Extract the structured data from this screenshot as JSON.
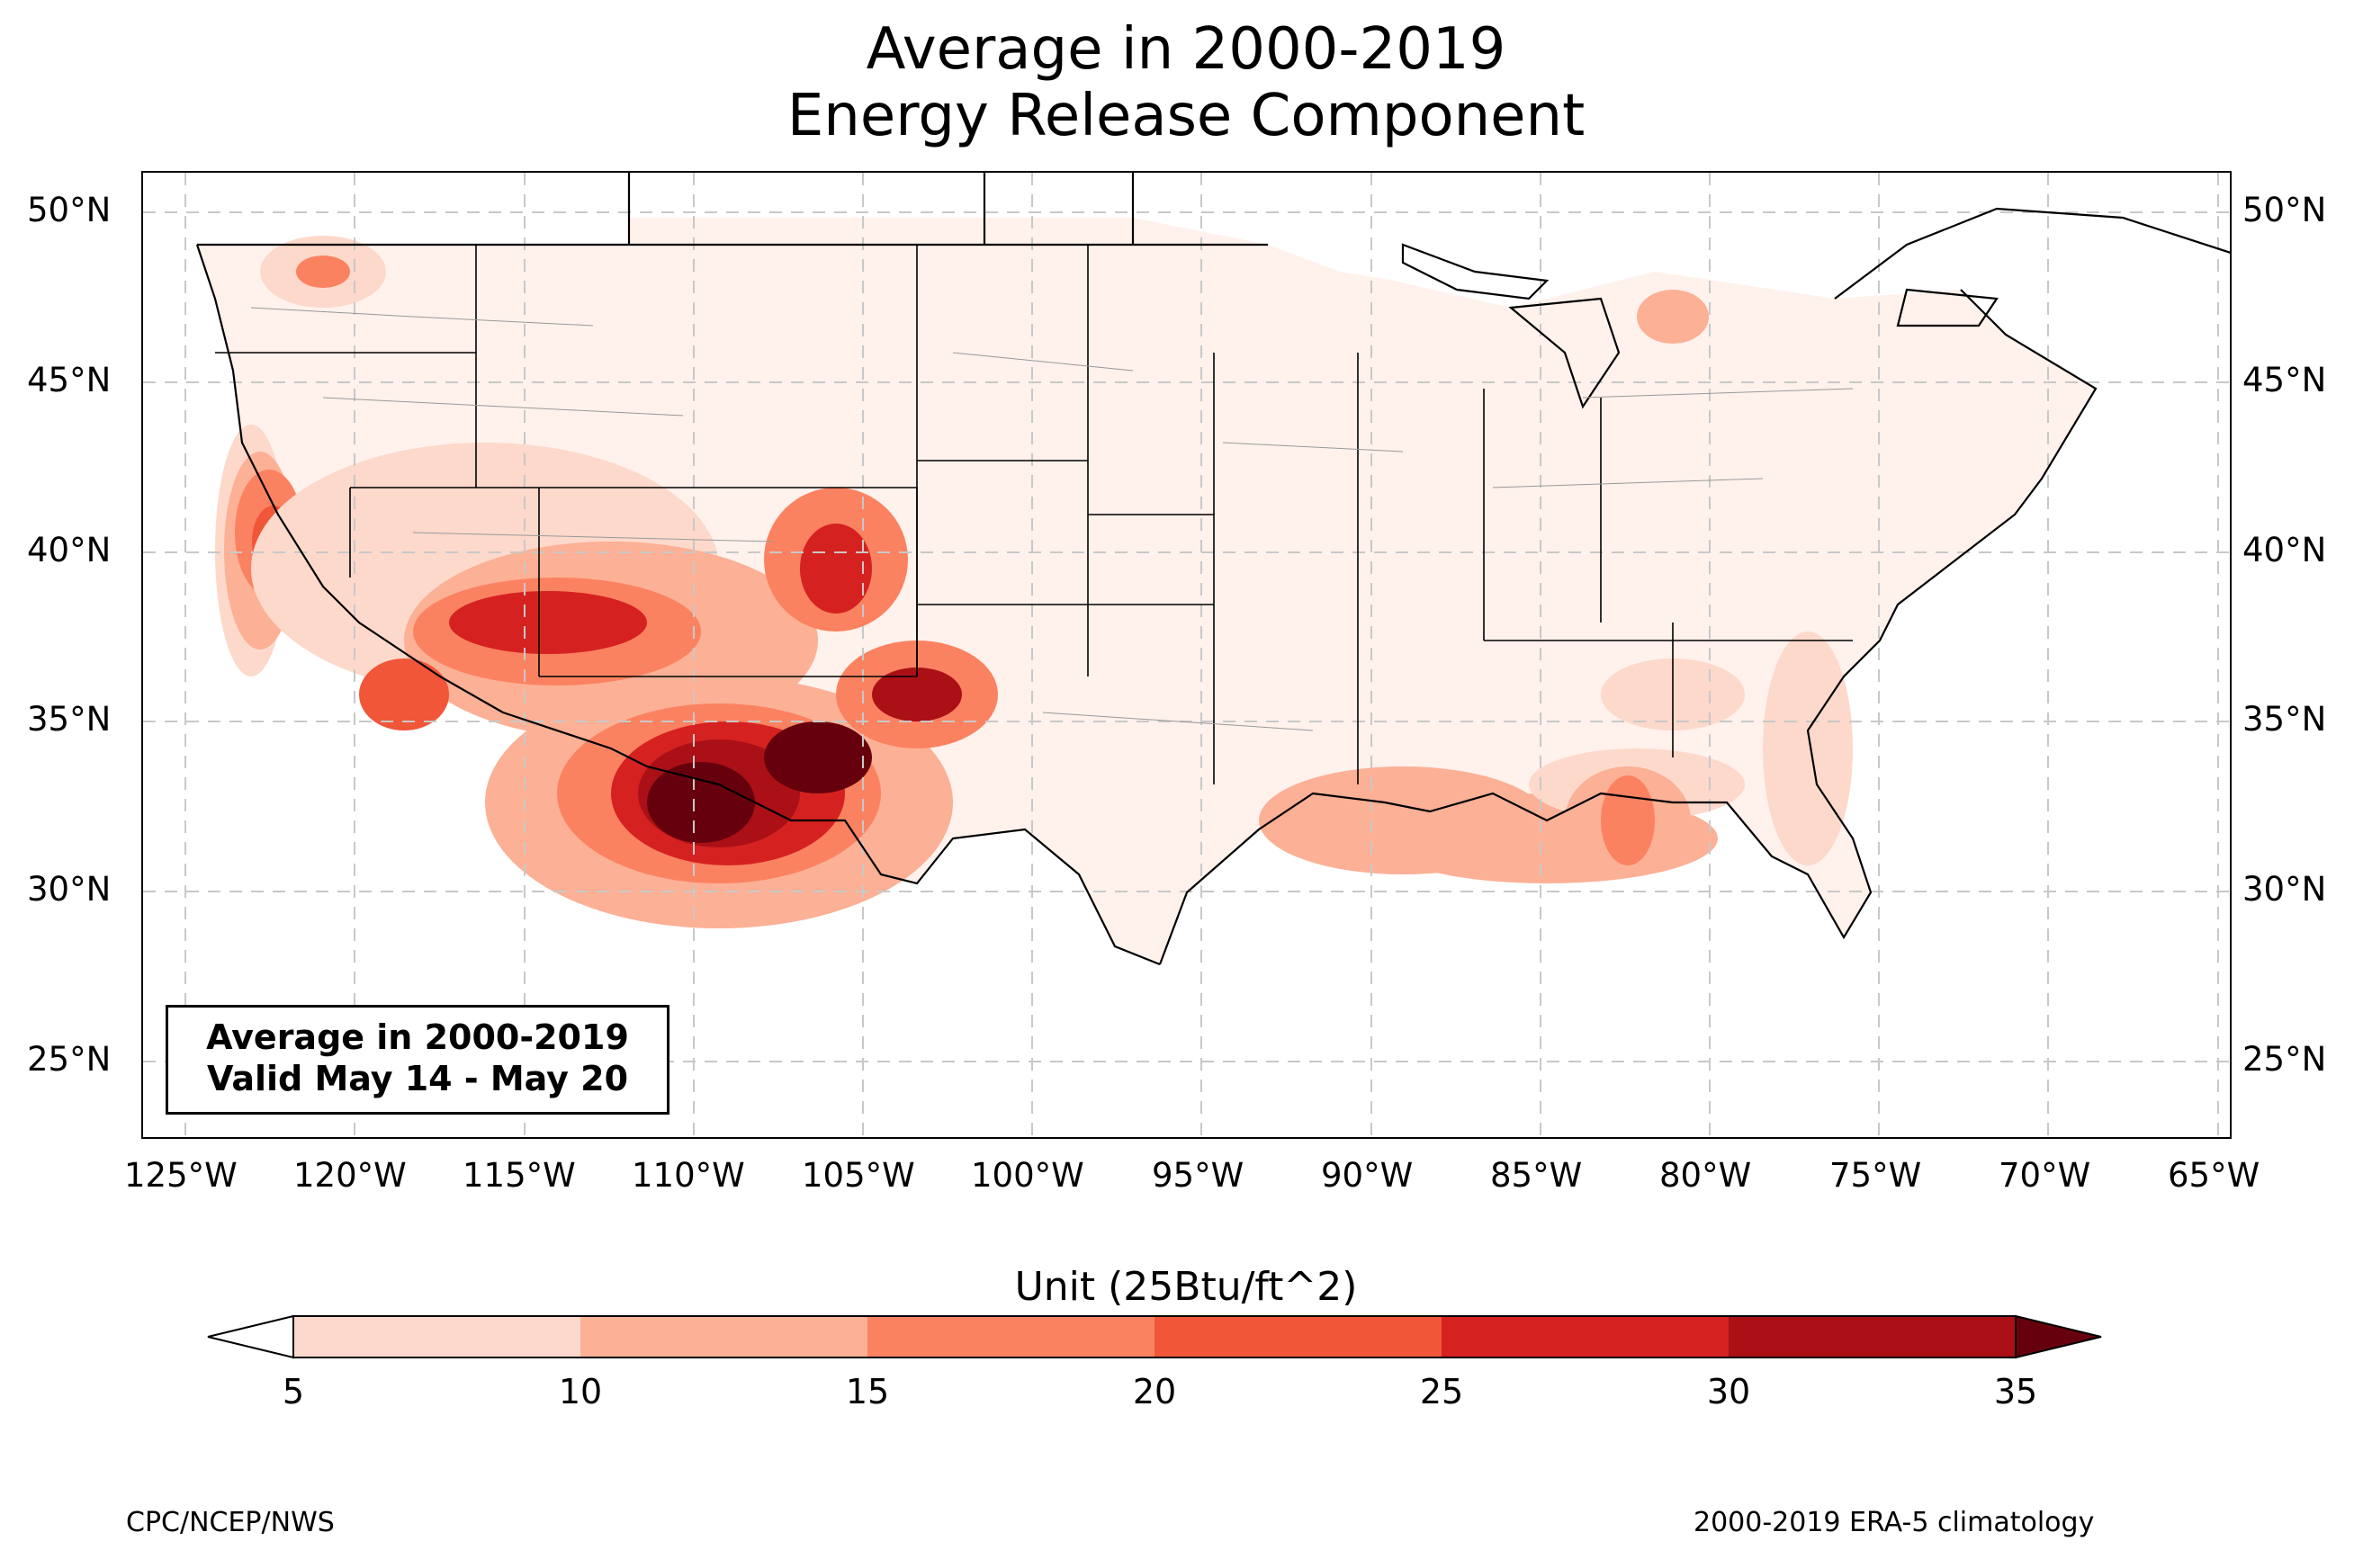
{
  "title": {
    "line1": "Average in 2000-2019",
    "line2": "Energy Release Component"
  },
  "map": {
    "projection": "PlateCarree",
    "lon_range": [
      -126.5,
      -64.8
    ],
    "lat_range": [
      22.8,
      51.2
    ],
    "lon_ticks": [
      "125°W",
      "120°W",
      "115°W",
      "110°W",
      "105°W",
      "100°W",
      "95°W",
      "90°W",
      "85°W",
      "80°W",
      "75°W",
      "70°W",
      "65°W"
    ],
    "lat_ticks": [
      "50°N",
      "45°N",
      "40°N",
      "35°N",
      "30°N",
      "25°N"
    ],
    "gridlines": "dashed grey",
    "field": "Energy Release Component average, week of May 14 - May 20"
  },
  "info_box": {
    "line1": "Average in 2000-2019",
    "line2": "Valid May 14 - May 20"
  },
  "colorbar": {
    "label": "Unit (25Btu/ft^2)",
    "levels": [
      5,
      10,
      15,
      20,
      25,
      30,
      35
    ],
    "tick_labels": [
      "5",
      "10",
      "15",
      "20",
      "25",
      "30",
      "35"
    ],
    "colors": [
      "#fdd9cb",
      "#fcb095",
      "#fb8261",
      "#f15639",
      "#d52221",
      "#aa1016"
    ],
    "under_color": "#ffffff",
    "over_color": "#67000d",
    "extend": "both"
  },
  "footer": {
    "left": "CPC/NCEP/NWS",
    "right": "2000-2019 ERA-5 climatology"
  }
}
